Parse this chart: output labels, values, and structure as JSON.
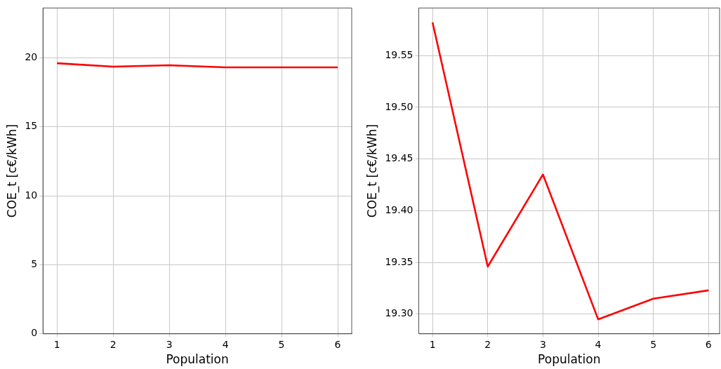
{
  "chart_data": [
    {
      "type": "line",
      "xlabel": "Population",
      "ylabel": "COE_t [c€/kWh]",
      "x": [
        1,
        2,
        3,
        4,
        5,
        6
      ],
      "series": [
        {
          "color": "#ff0000",
          "values": [
            19.6,
            19.35,
            19.45,
            19.3,
            19.3,
            19.3
          ]
        }
      ],
      "xlim": [
        0.75,
        6.25
      ],
      "xticks": [
        1,
        2,
        3,
        4,
        5,
        6
      ],
      "ylim": [
        0,
        23.6
      ],
      "yticks": [
        0,
        5,
        10,
        15,
        20
      ],
      "grid": true,
      "legend": false,
      "marker": "none",
      "line_style": "solid"
    },
    {
      "type": "line",
      "xlabel": "Population",
      "ylabel": "COE_t [c€/kWh]",
      "x": [
        1,
        2,
        3,
        4,
        5,
        6
      ],
      "series": [
        {
          "color": "#ff0000",
          "values": [
            19.582,
            19.346,
            19.435,
            19.295,
            19.315,
            19.323
          ]
        }
      ],
      "xlim": [
        0.75,
        6.2
      ],
      "xticks": [
        1,
        2,
        3,
        4,
        5,
        6
      ],
      "ylim": [
        19.281,
        19.596
      ],
      "yticks": [
        {
          "value": 19.3,
          "label": "19.30"
        },
        {
          "value": 19.35,
          "label": "19.35"
        },
        {
          "value": 19.4,
          "label": "19.40"
        },
        {
          "value": 19.45,
          "label": "19.45"
        },
        {
          "value": 19.5,
          "label": "19.50"
        },
        {
          "value": 19.55,
          "label": "19.55"
        }
      ],
      "grid": true,
      "legend": false,
      "marker": "none",
      "line_style": "solid"
    }
  ]
}
